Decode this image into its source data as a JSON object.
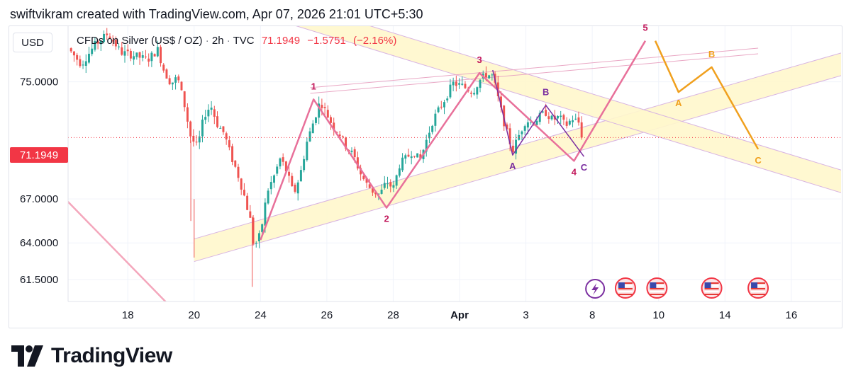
{
  "header": {
    "text": "swiftvikram created with TradingView.com, Apr 07, 2026 21:01 UTC+5:30"
  },
  "currency": "USD",
  "legend": {
    "symbol": "CFDs on Silver (US$ / OZ)",
    "interval": "2h",
    "source": "TVC",
    "last": "71.1949",
    "change": "−1.5751",
    "change_pct": "(−2.16%)"
  },
  "price_tag": "71.1949",
  "brand": "TradingView",
  "colors": {
    "up": "#26a69a",
    "down": "#ef5350",
    "pink": "#e8709a",
    "wave_label": "#c2185b",
    "purple": "#7b2fa0",
    "orange": "#f0a01e",
    "channel": "#fff7cc",
    "price_line": "#f23645"
  },
  "chart_data": {
    "type": "candlestick",
    "ylim": [
      60,
      78.8
    ],
    "y_ticks": [
      {
        "label": "75.0000",
        "value": 75
      },
      {
        "label": "67.0000",
        "value": 67
      },
      {
        "label": "64.0000",
        "value": 64
      },
      {
        "label": "61.5000",
        "value": 61.5
      }
    ],
    "x_ticks": [
      {
        "label": "18",
        "x": 18
      },
      {
        "label": "20",
        "x": 20
      },
      {
        "label": "24",
        "x": 22
      },
      {
        "label": "26",
        "x": 24
      },
      {
        "label": "28",
        "x": 26
      },
      {
        "label": "Apr",
        "x": 28,
        "bold": true
      },
      {
        "label": "3",
        "x": 30
      },
      {
        "label": "8",
        "x": 32
      },
      {
        "label": "10",
        "x": 34
      },
      {
        "label": "14",
        "x": 36
      },
      {
        "label": "16",
        "x": 38
      }
    ],
    "xlim": [
      16.2,
      39.5
    ],
    "last_price": 71.1949,
    "price_path": [
      [
        16.2,
        77.3
      ],
      [
        16.6,
        76.2
      ],
      [
        17.0,
        77.5
      ],
      [
        17.4,
        78.3
      ],
      [
        17.8,
        77.0
      ],
      [
        18.2,
        76.8
      ],
      [
        18.6,
        76.5
      ],
      [
        18.9,
        77.2
      ],
      [
        19.1,
        75.7
      ],
      [
        19.3,
        74.9
      ],
      [
        19.5,
        75.3
      ],
      [
        19.7,
        73.5
      ],
      [
        19.9,
        71.2
      ],
      [
        20.1,
        70.5
      ],
      [
        20.3,
        72.7
      ],
      [
        20.5,
        73.4
      ],
      [
        20.7,
        72.1
      ],
      [
        20.9,
        71.5
      ],
      [
        21.1,
        70.0
      ],
      [
        21.3,
        68.8
      ],
      [
        21.5,
        67.3
      ],
      [
        21.7,
        65.5
      ],
      [
        21.8,
        63.7
      ],
      [
        22.0,
        64.6
      ],
      [
        22.2,
        67.5
      ],
      [
        22.4,
        68.5
      ],
      [
        22.6,
        69.8
      ],
      [
        22.8,
        68.8
      ],
      [
        23.0,
        67.3
      ],
      [
        23.2,
        68.7
      ],
      [
        23.4,
        70.9
      ],
      [
        23.6,
        72.3
      ],
      [
        23.8,
        73.7
      ],
      [
        24.0,
        72.8
      ],
      [
        24.2,
        71.9
      ],
      [
        24.4,
        71.4
      ],
      [
        24.6,
        70.5
      ],
      [
        24.8,
        70.0
      ],
      [
        25.0,
        68.8
      ],
      [
        25.2,
        68.0
      ],
      [
        25.4,
        67.5
      ],
      [
        25.6,
        67.3
      ],
      [
        25.8,
        68.2
      ],
      [
        26.0,
        67.7
      ],
      [
        26.2,
        69.4
      ],
      [
        26.4,
        69.8
      ],
      [
        26.6,
        70.3
      ],
      [
        26.8,
        69.6
      ],
      [
        27.0,
        71.0
      ],
      [
        27.2,
        72.4
      ],
      [
        27.4,
        73.2
      ],
      [
        27.6,
        74.0
      ],
      [
        27.8,
        74.9
      ],
      [
        28.1,
        74.7
      ],
      [
        28.4,
        74.3
      ],
      [
        28.6,
        75.1
      ],
      [
        28.8,
        75.5
      ],
      [
        29.0,
        75.4
      ],
      [
        29.2,
        73.5
      ],
      [
        29.4,
        71.7
      ],
      [
        29.6,
        70.3
      ],
      [
        29.8,
        71.4
      ],
      [
        30.0,
        72.4
      ],
      [
        30.2,
        72.2
      ],
      [
        30.4,
        72.6
      ],
      [
        30.6,
        72.9
      ],
      [
        30.8,
        72.4
      ],
      [
        31.0,
        72.6
      ],
      [
        31.2,
        72.0
      ],
      [
        31.4,
        72.5
      ],
      [
        31.6,
        72.2
      ],
      [
        31.75,
        71.4
      ]
    ],
    "channels": [
      {
        "type": "ascending",
        "from": [
          20.0,
          63.5
        ],
        "to": [
          39.5,
          76.2
        ]
      },
      {
        "type": "descending",
        "from": [
          22.2,
          80.2
        ],
        "to": [
          39.5,
          68.2
        ]
      }
    ],
    "trendlines": [
      {
        "name": "upper-wedge",
        "from": [
          23.5,
          74.6
        ],
        "to": [
          37.0,
          77.3
        ]
      }
    ],
    "waves": [
      {
        "name": "impulse",
        "points": [
          [
            22.0,
            64.2
          ],
          [
            23.6,
            73.8
          ],
          [
            25.8,
            66.4
          ],
          [
            28.6,
            75.6
          ],
          [
            31.45,
            69.6
          ],
          [
            33.6,
            77.8
          ]
        ],
        "labels": [
          "",
          "1",
          "2",
          "3",
          "4",
          "5"
        ]
      },
      {
        "name": "correction-abc-projected",
        "points": [
          [
            33.9,
            77.8
          ],
          [
            34.6,
            74.3
          ],
          [
            35.6,
            76.0
          ],
          [
            37.0,
            70.4
          ]
        ],
        "labels": [
          "",
          "A",
          "B",
          "C"
        ]
      },
      {
        "name": "correction-abc-recent",
        "points": [
          [
            29.0,
            75.8
          ],
          [
            29.6,
            70.0
          ],
          [
            30.6,
            73.4
          ],
          [
            31.75,
            69.9
          ]
        ],
        "labels": [
          "",
          "A",
          "B",
          "C"
        ]
      }
    ]
  }
}
